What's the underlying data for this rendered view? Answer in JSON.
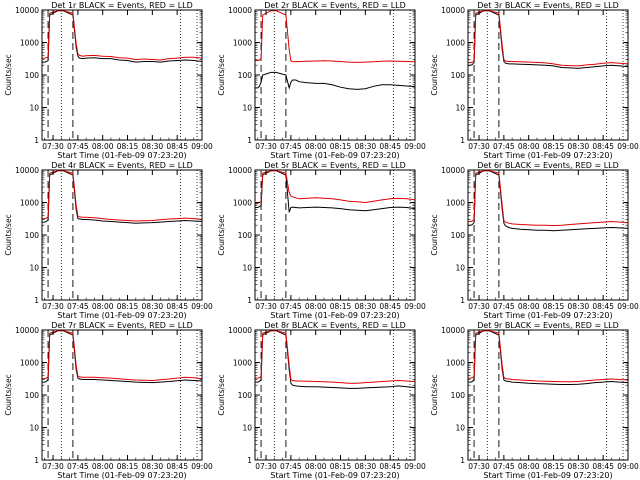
{
  "figure": {
    "xlabel": "Start Time (01-Feb-09 07:23:20)",
    "ylabel": "Counts/sec",
    "x_ticks": [
      "07:30",
      "07:45",
      "08:00",
      "08:15",
      "08:30",
      "08:45",
      "09:00"
    ],
    "y_ticks": [
      "1",
      "10",
      "100",
      "1000",
      "10000"
    ],
    "colors": {
      "events": "#000000",
      "lld": "#e00000",
      "axes": "#000000"
    }
  },
  "chart_data": [
    {
      "type": "line",
      "title": "Det 1r BLACK = Events, RED = LLD",
      "x": [
        "07:23:20",
        "07:25",
        "07:26",
        "07:27",
        "07:28",
        "07:33",
        "07:36",
        "07:42",
        "07:44",
        "07:45",
        "07:46",
        "07:48",
        "07:50",
        "07:55",
        "08:00",
        "08:05",
        "08:10",
        "08:15",
        "08:20",
        "08:25",
        "08:30",
        "08:35",
        "08:40",
        "08:45",
        "08:50",
        "08:55",
        "09:00"
      ],
      "series": [
        {
          "values": [
            250,
            250,
            260,
            280,
            7000,
            9500,
            9500,
            7000,
            700,
            380,
            330,
            320,
            330,
            340,
            320,
            320,
            290,
            280,
            250,
            260,
            260,
            250,
            270,
            280,
            290,
            280,
            260
          ]
        },
        {
          "values": [
            330,
            330,
            340,
            360,
            8000,
            9500,
            9500,
            8000,
            900,
            450,
            400,
            380,
            390,
            400,
            380,
            370,
            340,
            330,
            300,
            310,
            300,
            290,
            320,
            330,
            350,
            350,
            330
          ]
        }
      ],
      "xlim": [
        "07:23:20",
        "09:00"
      ],
      "ylim": [
        1,
        10000
      ],
      "ylog": true,
      "vlines_dashed": [
        "07:27",
        "07:42"
      ],
      "vlines_dotted": [
        "07:35",
        "08:47",
        "08:57"
      ]
    },
    {
      "type": "line",
      "title": "Det 2r BLACK = Events, RED = LLD",
      "x": [
        "07:23:20",
        "07:25",
        "07:26",
        "07:27",
        "07:28",
        "07:33",
        "07:36",
        "07:42",
        "07:44",
        "07:45",
        "07:46",
        "07:48",
        "07:50",
        "07:55",
        "08:00",
        "08:05",
        "08:10",
        "08:15",
        "08:20",
        "08:25",
        "08:30",
        "08:35",
        "08:40",
        "08:45",
        "08:50",
        "08:55",
        "09:00"
      ],
      "series": [
        {
          "values": [
            40,
            40,
            45,
            60,
            100,
            120,
            120,
            100,
            40,
            60,
            70,
            70,
            62,
            58,
            55,
            55,
            50,
            42,
            38,
            36,
            38,
            45,
            50,
            50,
            48,
            46,
            44
          ]
        },
        {
          "values": [
            280,
            280,
            290,
            320,
            7000,
            9500,
            9500,
            7000,
            600,
            270,
            260,
            255,
            260,
            265,
            270,
            275,
            270,
            260,
            250,
            245,
            250,
            255,
            265,
            270,
            265,
            260,
            255
          ]
        }
      ],
      "xlim": [
        "07:23:20",
        "09:00"
      ],
      "ylim": [
        1,
        10000
      ],
      "ylog": true,
      "vlines_dashed": [
        "07:27",
        "07:42"
      ],
      "vlines_dotted": [
        "07:35",
        "08:47",
        "08:57"
      ]
    },
    {
      "type": "line",
      "title": "Det 3r BLACK = Events, RED = LLD",
      "x": [
        "07:23:20",
        "07:25",
        "07:26",
        "07:27",
        "07:28",
        "07:33",
        "07:36",
        "07:42",
        "07:44",
        "07:45",
        "07:46",
        "07:48",
        "07:50",
        "07:55",
        "08:00",
        "08:05",
        "08:10",
        "08:15",
        "08:20",
        "08:25",
        "08:30",
        "08:35",
        "08:40",
        "08:45",
        "08:50",
        "08:55",
        "09:00"
      ],
      "series": [
        {
          "values": [
            200,
            200,
            210,
            240,
            7000,
            9500,
            9500,
            7000,
            600,
            260,
            230,
            220,
            220,
            215,
            210,
            205,
            200,
            190,
            170,
            165,
            160,
            170,
            180,
            190,
            200,
            190,
            180
          ]
        },
        {
          "values": [
            240,
            240,
            250,
            280,
            8000,
            9500,
            9500,
            8000,
            800,
            300,
            270,
            260,
            260,
            255,
            250,
            245,
            235,
            220,
            200,
            195,
            190,
            205,
            215,
            230,
            240,
            230,
            220
          ]
        }
      ],
      "xlim": [
        "07:23:20",
        "09:00"
      ],
      "ylim": [
        1,
        10000
      ],
      "ylog": true,
      "vlines_dashed": [
        "07:27",
        "07:42"
      ],
      "vlines_dotted": [
        "07:35",
        "08:47",
        "08:57"
      ]
    },
    {
      "type": "line",
      "title": "Det 4r BLACK = Events, RED = LLD",
      "x": [
        "07:23:20",
        "07:25",
        "07:26",
        "07:27",
        "07:28",
        "07:33",
        "07:36",
        "07:42",
        "07:44",
        "07:45",
        "07:46",
        "07:48",
        "07:50",
        "07:55",
        "08:00",
        "08:05",
        "08:10",
        "08:15",
        "08:20",
        "08:25",
        "08:30",
        "08:35",
        "08:40",
        "08:45",
        "08:50",
        "08:55",
        "09:00"
      ],
      "series": [
        {
          "values": [
            250,
            250,
            260,
            290,
            7000,
            9500,
            9500,
            7000,
            600,
            320,
            310,
            300,
            300,
            290,
            270,
            260,
            250,
            240,
            230,
            235,
            240,
            250,
            260,
            270,
            280,
            270,
            260
          ]
        },
        {
          "values": [
            320,
            320,
            330,
            360,
            8000,
            9500,
            9500,
            8000,
            800,
            380,
            360,
            350,
            350,
            340,
            320,
            300,
            290,
            280,
            270,
            275,
            280,
            295,
            310,
            320,
            330,
            320,
            300
          ]
        }
      ],
      "xlim": [
        "07:23:20",
        "09:00"
      ],
      "ylim": [
        1,
        10000
      ],
      "ylog": true,
      "vlines_dashed": [
        "07:27",
        "07:42"
      ],
      "vlines_dotted": [
        "07:35",
        "08:47",
        "08:57"
      ]
    },
    {
      "type": "line",
      "title": "Det 5r BLACK = Events, RED = LLD",
      "x": [
        "07:23:20",
        "07:25",
        "07:26",
        "07:27",
        "07:28",
        "07:33",
        "07:36",
        "07:42",
        "07:44",
        "07:45",
        "07:46",
        "07:48",
        "07:50",
        "07:55",
        "08:00",
        "08:05",
        "08:10",
        "08:15",
        "08:20",
        "08:25",
        "08:30",
        "08:35",
        "08:40",
        "08:45",
        "08:50",
        "08:55",
        "09:00"
      ],
      "series": [
        {
          "values": [
            700,
            700,
            750,
            800,
            7000,
            9500,
            9500,
            7000,
            500,
            700,
            720,
            700,
            680,
            700,
            720,
            700,
            680,
            650,
            600,
            580,
            560,
            600,
            650,
            700,
            720,
            700,
            650
          ]
        },
        {
          "values": [
            950,
            950,
            1000,
            1100,
            8000,
            9500,
            9500,
            8000,
            2000,
            1600,
            1500,
            1400,
            1300,
            1350,
            1400,
            1350,
            1300,
            1200,
            1100,
            1050,
            1000,
            1100,
            1200,
            1300,
            1350,
            1300,
            1200
          ]
        }
      ],
      "xlim": [
        "07:23:20",
        "09:00"
      ],
      "ylim": [
        1,
        10000
      ],
      "ylog": true,
      "vlines_dashed": [
        "07:27",
        "07:42"
      ],
      "vlines_dotted": [
        "07:35",
        "08:47",
        "08:57"
      ]
    },
    {
      "type": "line",
      "title": "Det 6r BLACK = Events, RED = LLD",
      "x": [
        "07:23:20",
        "07:25",
        "07:26",
        "07:27",
        "07:28",
        "07:33",
        "07:36",
        "07:42",
        "07:44",
        "07:45",
        "07:46",
        "07:48",
        "07:50",
        "07:55",
        "08:00",
        "08:05",
        "08:10",
        "08:15",
        "08:20",
        "08:25",
        "08:30",
        "08:35",
        "08:40",
        "08:45",
        "08:50",
        "08:55",
        "09:00"
      ],
      "series": [
        {
          "values": [
            200,
            200,
            210,
            240,
            7000,
            9500,
            9500,
            7000,
            600,
            230,
            190,
            170,
            160,
            150,
            145,
            140,
            140,
            135,
            140,
            145,
            150,
            155,
            160,
            165,
            170,
            165,
            160
          ]
        },
        {
          "values": [
            260,
            260,
            270,
            300,
            8000,
            9500,
            9500,
            8000,
            800,
            280,
            250,
            230,
            220,
            210,
            205,
            200,
            200,
            195,
            200,
            210,
            220,
            230,
            240,
            250,
            260,
            250,
            240
          ]
        }
      ],
      "xlim": [
        "07:23:20",
        "09:00"
      ],
      "ylim": [
        1,
        10000
      ],
      "ylog": true,
      "vlines_dashed": [
        "07:27",
        "07:42"
      ],
      "vlines_dotted": [
        "07:35",
        "08:47",
        "08:57"
      ]
    },
    {
      "type": "line",
      "title": "Det 7r BLACK = Events, RED = LLD",
      "x": [
        "07:23:20",
        "07:25",
        "07:26",
        "07:27",
        "07:28",
        "07:33",
        "07:36",
        "07:42",
        "07:44",
        "07:45",
        "07:46",
        "07:48",
        "07:50",
        "07:55",
        "08:00",
        "08:05",
        "08:10",
        "08:15",
        "08:20",
        "08:25",
        "08:30",
        "08:35",
        "08:40",
        "08:45",
        "08:50",
        "08:55",
        "09:00"
      ],
      "series": [
        {
          "values": [
            250,
            250,
            260,
            300,
            7000,
            9500,
            9500,
            7000,
            600,
            330,
            310,
            300,
            300,
            300,
            290,
            280,
            270,
            260,
            250,
            245,
            240,
            250,
            260,
            275,
            290,
            280,
            270
          ]
        },
        {
          "values": [
            320,
            320,
            330,
            360,
            8000,
            9500,
            9500,
            8000,
            800,
            380,
            360,
            350,
            350,
            350,
            340,
            330,
            315,
            300,
            290,
            285,
            280,
            295,
            310,
            330,
            350,
            340,
            320
          ]
        }
      ],
      "xlim": [
        "07:23:20",
        "09:00"
      ],
      "ylim": [
        1,
        10000
      ],
      "ylog": true,
      "vlines_dashed": [
        "07:27",
        "07:42"
      ],
      "vlines_dotted": [
        "07:35",
        "08:47",
        "08:57"
      ]
    },
    {
      "type": "line",
      "title": "Det 8r BLACK = Events, RED = LLD",
      "x": [
        "07:23:20",
        "07:25",
        "07:26",
        "07:27",
        "07:28",
        "07:33",
        "07:36",
        "07:42",
        "07:44",
        "07:45",
        "07:46",
        "07:48",
        "07:50",
        "07:55",
        "08:00",
        "08:05",
        "08:10",
        "08:15",
        "08:20",
        "08:25",
        "08:30",
        "08:35",
        "08:40",
        "08:45",
        "08:50",
        "08:55",
        "09:00"
      ],
      "series": [
        {
          "values": [
            250,
            250,
            260,
            300,
            7000,
            9500,
            9500,
            7000,
            600,
            230,
            200,
            190,
            185,
            180,
            180,
            175,
            170,
            165,
            160,
            160,
            165,
            170,
            175,
            180,
            190,
            180,
            170
          ]
        },
        {
          "values": [
            330,
            330,
            340,
            380,
            8000,
            9500,
            9500,
            8000,
            800,
            300,
            280,
            270,
            270,
            265,
            260,
            255,
            250,
            240,
            230,
            230,
            240,
            250,
            260,
            270,
            280,
            270,
            260
          ]
        }
      ],
      "xlim": [
        "07:23:20",
        "09:00"
      ],
      "ylim": [
        1,
        10000
      ],
      "ylog": true,
      "vlines_dashed": [
        "07:27",
        "07:42"
      ],
      "vlines_dotted": [
        "07:35",
        "08:47",
        "08:57"
      ]
    },
    {
      "type": "line",
      "title": "Det 9r BLACK = Events, RED = LLD",
      "x": [
        "07:23:20",
        "07:25",
        "07:26",
        "07:27",
        "07:28",
        "07:33",
        "07:36",
        "07:42",
        "07:44",
        "07:45",
        "07:46",
        "07:48",
        "07:50",
        "07:55",
        "08:00",
        "08:05",
        "08:10",
        "08:15",
        "08:20",
        "08:25",
        "08:30",
        "08:35",
        "08:40",
        "08:45",
        "08:50",
        "08:55",
        "09:00"
      ],
      "series": [
        {
          "values": [
            250,
            250,
            260,
            300,
            7000,
            9500,
            9500,
            7000,
            600,
            290,
            270,
            260,
            250,
            240,
            230,
            225,
            220,
            215,
            210,
            210,
            215,
            225,
            240,
            250,
            260,
            250,
            240
          ]
        },
        {
          "values": [
            330,
            330,
            340,
            380,
            8000,
            9500,
            9500,
            8000,
            800,
            350,
            320,
            310,
            300,
            290,
            280,
            270,
            265,
            260,
            255,
            255,
            260,
            275,
            290,
            300,
            310,
            300,
            290
          ]
        }
      ],
      "xlim": [
        "07:23:20",
        "09:00"
      ],
      "ylim": [
        1,
        10000
      ],
      "ylog": true,
      "vlines_dashed": [
        "07:27",
        "07:42"
      ],
      "vlines_dotted": [
        "07:35",
        "08:47",
        "08:57"
      ]
    }
  ]
}
